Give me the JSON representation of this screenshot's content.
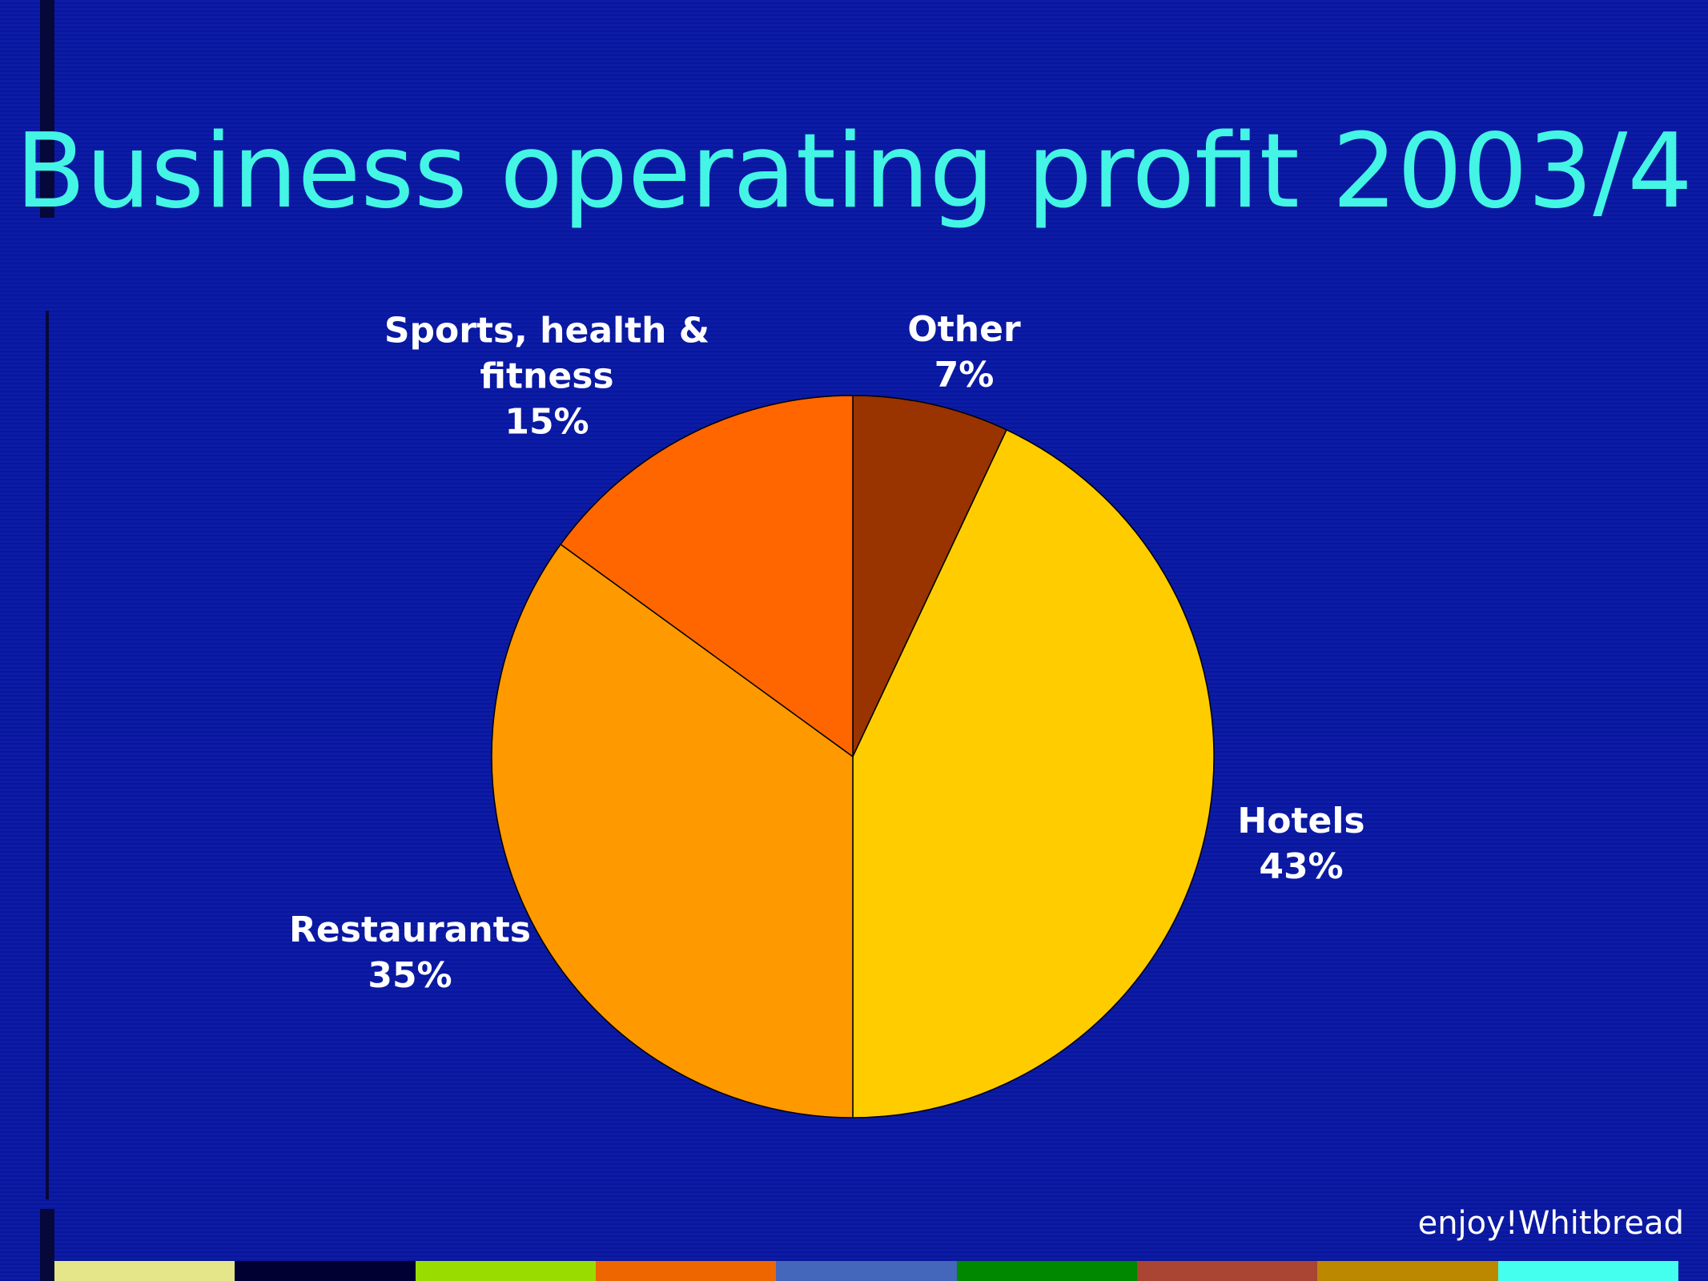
{
  "chart_data": {
    "type": "pie",
    "title": "Business operating profit 2003/4",
    "categories": [
      "Other",
      "Hotels",
      "Restaurants",
      "Sports, health & fitness"
    ],
    "values": [
      7,
      43,
      35,
      15
    ],
    "value_labels": [
      "7%",
      "43%",
      "35%",
      "15%"
    ],
    "colors": [
      "#993300",
      "#ffcc00",
      "#ff9900",
      "#ff6600"
    ]
  },
  "footer": "enjoy!Whitbread"
}
